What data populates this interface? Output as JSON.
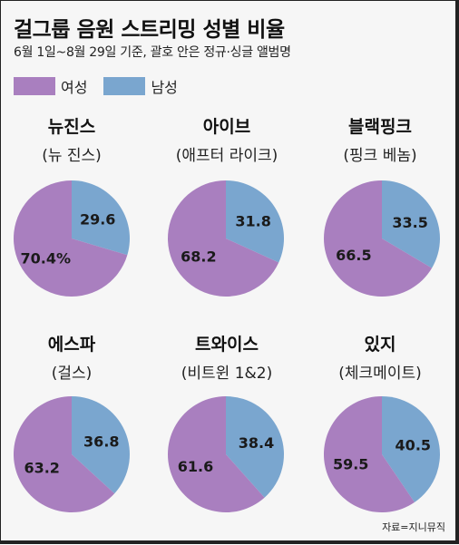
{
  "title": "걸그룹 음원 스트리밍 성별 비율",
  "subtitle": "6월 1일~8월 29일 기준, 괄호 안은 정규·싱글 앨범명",
  "legend": [
    {
      "label": "여성",
      "color": "#a97fbf"
    },
    {
      "label": "남성",
      "color": "#7aa6cf"
    }
  ],
  "source": "자료=지니뮤직",
  "chart_data": {
    "type": "pie",
    "series_names": [
      "여성",
      "남성"
    ],
    "colors": {
      "female": "#a97fbf",
      "male": "#7aa6cf"
    },
    "pies": [
      {
        "group": "뉴진스",
        "album": "(뉴 진스)",
        "female": 70.4,
        "male": 29.6,
        "female_label": "70.4%",
        "male_label": "29.6"
      },
      {
        "group": "아이브",
        "album": "(애프터 라이크)",
        "female": 68.2,
        "male": 31.8,
        "female_label": "68.2",
        "male_label": "31.8"
      },
      {
        "group": "블랙핑크",
        "album": "(핑크 베놈)",
        "female": 66.5,
        "male": 33.5,
        "female_label": "66.5",
        "male_label": "33.5"
      },
      {
        "group": "에스파",
        "album": "(걸스)",
        "female": 63.2,
        "male": 36.8,
        "female_label": "63.2",
        "male_label": "36.8"
      },
      {
        "group": "트와이스",
        "album": "(비트윈 1&2)",
        "female": 61.6,
        "male": 38.4,
        "female_label": "61.6",
        "male_label": "38.4"
      },
      {
        "group": "있지",
        "album": "(체크메이트)",
        "female": 59.5,
        "male": 40.5,
        "female_label": "59.5",
        "male_label": "40.5"
      }
    ]
  }
}
